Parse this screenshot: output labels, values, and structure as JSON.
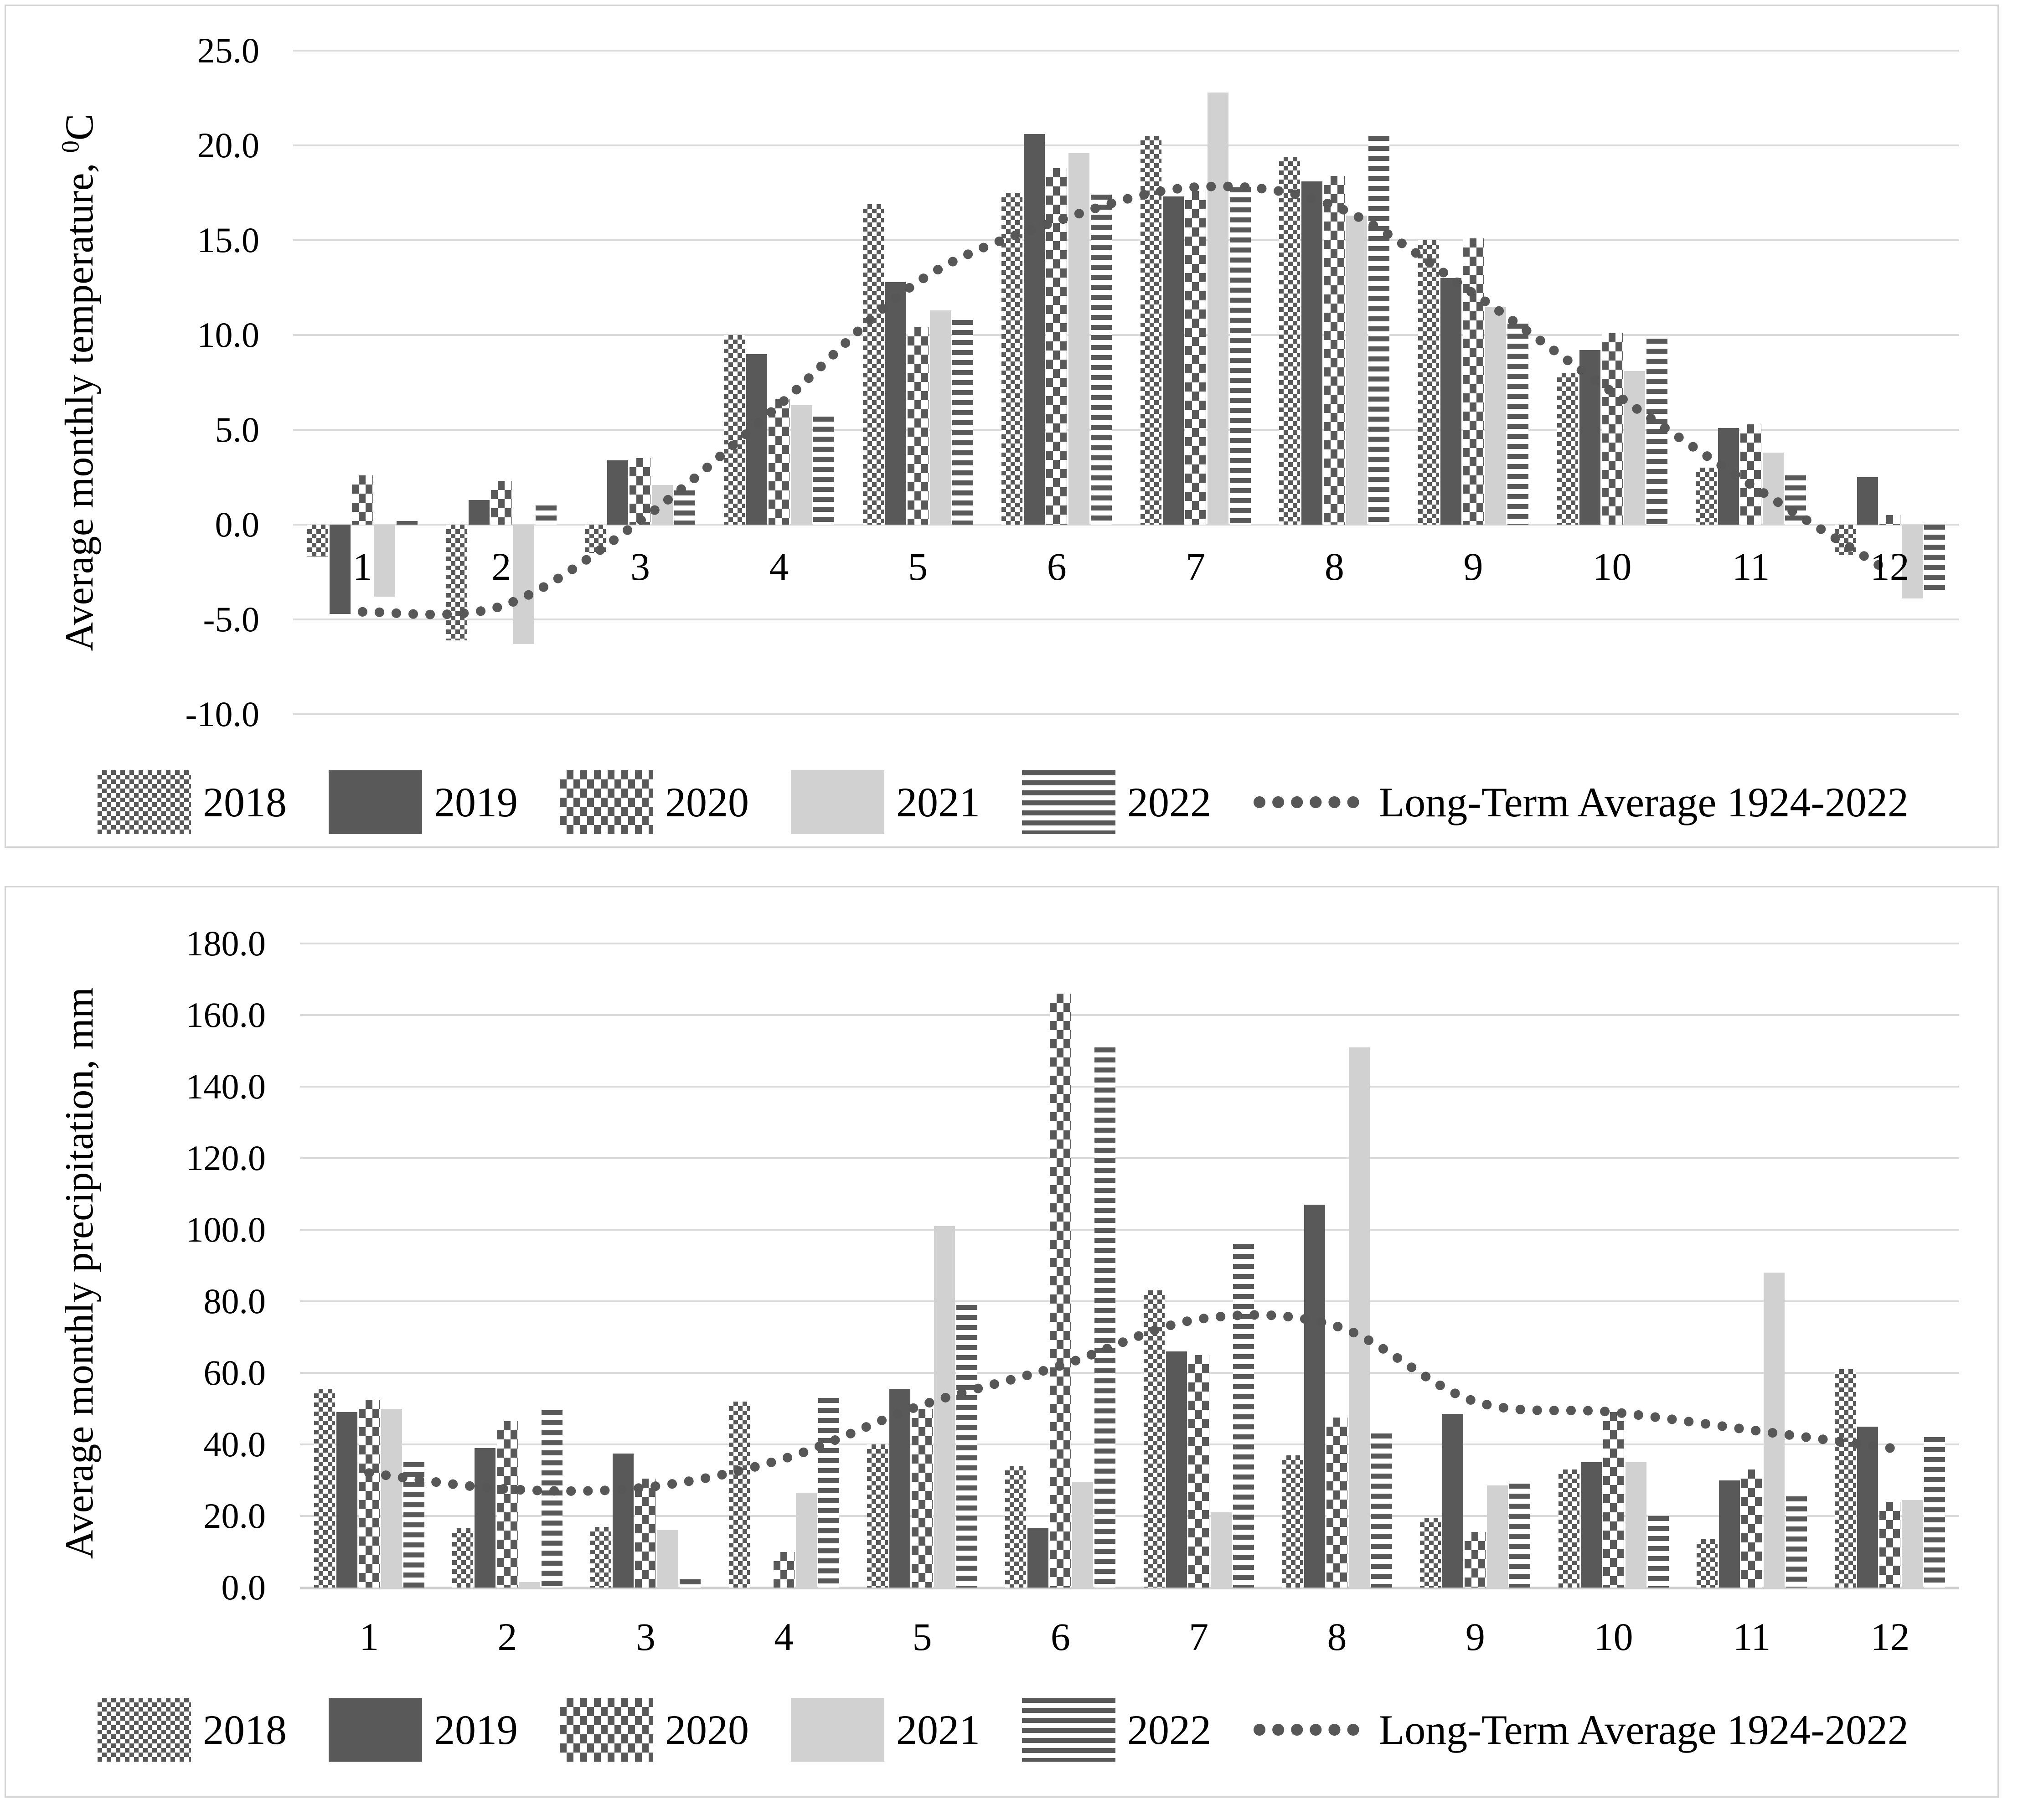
{
  "colors": {
    "bar_dark": "#595959",
    "bar_light": "#d1d1d1",
    "gridline": "#dadada",
    "panel_border": "#d4d4d4",
    "dotted_line": "#575757",
    "text": "#000000",
    "background": "#ffffff"
  },
  "charts": [
    {
      "id": "temperature",
      "y_axis_title": {
        "prefix": "Average monthly temperature, ",
        "superscript": "0",
        "suffix": "C"
      },
      "chart_data": {
        "type": "grouped-bar+dotted-line",
        "title": "",
        "xlabel": "",
        "ylabel": "Average monthly temperature, 0C",
        "categories": [
          "1",
          "2",
          "3",
          "4",
          "5",
          "6",
          "7",
          "8",
          "9",
          "10",
          "11",
          "12"
        ],
        "ylim": [
          -10,
          25
        ],
        "y_tick_labels": [
          "25.0",
          "20.0",
          "15.0",
          "10.0",
          "5.0",
          "0.0",
          "-5.0",
          "-10.0"
        ],
        "y_tick_values": [
          25,
          20,
          15,
          10,
          5,
          0,
          -5,
          -10
        ],
        "grid": "horizontal",
        "legend_position": "bottom",
        "series": [
          {
            "name": "2018",
            "pattern": "checker-fine",
            "values": [
              -1.7,
              -6.1,
              -1.5,
              10.0,
              16.9,
              17.5,
              20.5,
              19.4,
              15.0,
              8.0,
              3.0,
              -1.6
            ]
          },
          {
            "name": "2019",
            "pattern": "solid-dark",
            "values": [
              -4.7,
              1.3,
              3.4,
              9.0,
              12.8,
              20.6,
              17.3,
              18.1,
              13.0,
              9.2,
              5.1,
              2.5
            ]
          },
          {
            "name": "2020",
            "pattern": "checker-coarse",
            "values": [
              2.6,
              2.3,
              3.5,
              6.6,
              10.4,
              18.8,
              17.6,
              18.4,
              15.1,
              10.1,
              5.3,
              0.5
            ]
          },
          {
            "name": "2021",
            "pattern": "solid-light",
            "values": [
              -3.8,
              -6.3,
              2.1,
              6.3,
              11.3,
              19.6,
              22.8,
              16.3,
              11.5,
              8.1,
              3.8,
              -3.9
            ]
          },
          {
            "name": "2022",
            "pattern": "h-stripes",
            "values": [
              0.2,
              1.0,
              1.8,
              5.7,
              10.8,
              17.4,
              17.8,
              20.5,
              10.6,
              9.8,
              2.6,
              -3.6
            ]
          }
        ],
        "line_series": {
          "name": "Long-Term Average 1924-2022",
          "style": "dotted",
          "values": [
            -4.6,
            -4.3,
            0.2,
            6.3,
            12.8,
            16.0,
            17.8,
            16.8,
            12.2,
            7.0,
            2.1,
            -2.5
          ]
        }
      }
    },
    {
      "id": "precipitation",
      "y_axis_title": {
        "prefix": "Average monthly precipitation, mm",
        "superscript": "",
        "suffix": ""
      },
      "chart_data": {
        "type": "grouped-bar+dotted-line",
        "title": "",
        "xlabel": "",
        "ylabel": "Average monthly precipitation, mm",
        "categories": [
          "1",
          "2",
          "3",
          "4",
          "5",
          "6",
          "7",
          "8",
          "9",
          "10",
          "11",
          "12"
        ],
        "ylim": [
          0,
          180
        ],
        "y_tick_labels": [
          "180.0",
          "160.0",
          "140.0",
          "120.0",
          "100.0",
          "80.0",
          "60.0",
          "40.0",
          "20.0",
          "0.0"
        ],
        "y_tick_values": [
          180,
          160,
          140,
          120,
          100,
          80,
          60,
          40,
          20,
          0
        ],
        "grid": "horizontal",
        "legend_position": "bottom",
        "series": [
          {
            "name": "2018",
            "pattern": "checker-fine",
            "values": [
              55.5,
              16.5,
              17.0,
              52.0,
              40.0,
              34.0,
              83.0,
              37.0,
              19.5,
              33.0,
              13.5,
              61.0
            ]
          },
          {
            "name": "2019",
            "pattern": "solid-dark",
            "values": [
              49.0,
              39.0,
              37.5,
              0.0,
              55.5,
              16.5,
              66.0,
              107.0,
              48.5,
              35.0,
              30.0,
              45.0
            ]
          },
          {
            "name": "2020",
            "pattern": "checker-coarse",
            "values": [
              52.5,
              46.5,
              30.5,
              10.0,
              50.0,
              166.0,
              65.0,
              47.5,
              15.5,
              49.0,
              33.0,
              24.0
            ]
          },
          {
            "name": "2021",
            "pattern": "solid-light",
            "values": [
              50.0,
              1.5,
              16.0,
              26.5,
              101.0,
              29.5,
              21.0,
              151.0,
              28.5,
              35.0,
              88.0,
              24.5
            ]
          },
          {
            "name": "2022",
            "pattern": "h-stripes",
            "values": [
              35.0,
              49.5,
              2.3,
              53.0,
              79.0,
              151.0,
              96.0,
              43.0,
              29.0,
              20.0,
              25.5,
              42.0
            ]
          }
        ],
        "line_series": {
          "name": "Long-Term Average 1924-2022",
          "style": "dotted",
          "values": [
            32.0,
            27.5,
            28.0,
            36.0,
            51.0,
            62.0,
            75.0,
            73.0,
            52.0,
            49.0,
            44.0,
            39.0
          ]
        }
      }
    }
  ]
}
